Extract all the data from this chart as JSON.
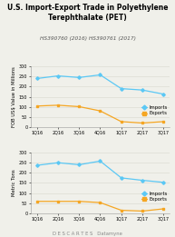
{
  "title": "U.S. Import-Export Trade in Polyethylene\nTerephthalate (PET)",
  "subtitle": "HS390760 (2016) HS390761 (2017)",
  "categories": [
    "1Q16",
    "2Q16",
    "3Q16",
    "4Q16",
    "1Q17",
    "2Q17",
    "3Q17"
  ],
  "top_chart": {
    "ylabel": "FOB US$ Value in Millions",
    "imports": [
      240,
      253,
      245,
      258,
      190,
      183,
      163
    ],
    "exports": [
      104,
      108,
      101,
      80,
      27,
      20,
      27
    ],
    "ylim": [
      0,
      300
    ],
    "yticks": [
      0,
      50,
      100,
      150,
      200,
      250,
      300
    ]
  },
  "bottom_chart": {
    "ylabel": "Metric Tons",
    "imports": [
      237,
      250,
      240,
      258,
      175,
      163,
      153
    ],
    "exports": [
      59,
      59,
      59,
      53,
      15,
      11,
      22
    ],
    "ylim": [
      0,
      300
    ],
    "yticks": [
      0,
      50,
      100,
      150,
      200,
      250,
      300
    ]
  },
  "imports_color": "#5BC8F5",
  "exports_color": "#F5A623",
  "background_color": "#F0F0EA",
  "grid_color": "#DCDCD4",
  "footer": "D E S C A R T E S   Datamyne",
  "title_fontsize": 5.5,
  "subtitle_fontsize": 4.2,
  "axis_label_fontsize": 3.8,
  "tick_fontsize": 3.5,
  "legend_fontsize": 3.8,
  "footer_fontsize": 3.8
}
